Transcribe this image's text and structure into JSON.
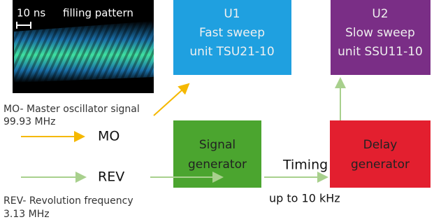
{
  "image": {
    "scale_label": "10 ns",
    "title": "filling pattern"
  },
  "u1": {
    "id": "U1",
    "line1": "Fast sweep",
    "line2": "unit TSU21-10"
  },
  "u2": {
    "id": "U2",
    "line1": "Slow sweep",
    "line2": "unit SSU11-10"
  },
  "signal_generator": {
    "line1": "Signal",
    "line2": "generator"
  },
  "delay_generator": {
    "line1": "Delay",
    "line2": "generator"
  },
  "mo": {
    "description": "MO- Master oscillator signal",
    "frequency": "99.93 MHz",
    "label": "MO"
  },
  "rev": {
    "description": "REV- Revolution frequency",
    "frequency": "3.13 MHz",
    "label": "REV"
  },
  "timing": {
    "label": "Timing",
    "rate": "up to 10 kHz"
  }
}
